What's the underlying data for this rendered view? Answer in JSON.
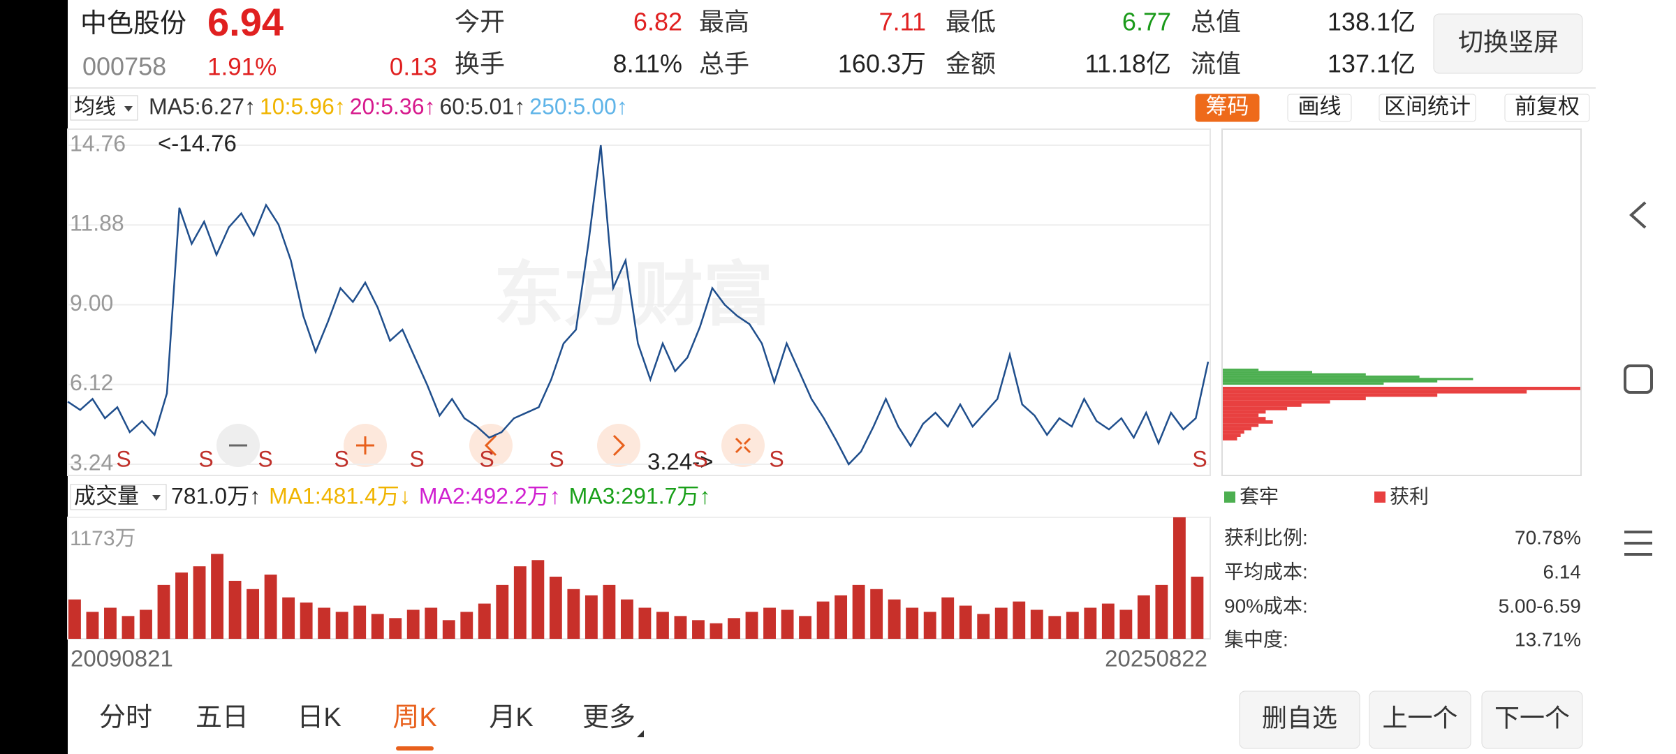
{
  "header": {
    "name": "中色股份",
    "price": "6.94",
    "code": "000758",
    "change_pct": "1.91%",
    "change": "0.13",
    "stats": [
      {
        "label": "今开",
        "value": "6.82",
        "color": "#e02020"
      },
      {
        "label": "最高",
        "value": "7.11",
        "color": "#e02020"
      },
      {
        "label": "最低",
        "value": "6.77",
        "color": "#1a9a1a"
      },
      {
        "label": "总值",
        "value": "138.1亿"
      },
      {
        "label": "换手",
        "value": "8.11%"
      },
      {
        "label": "总手",
        "value": "160.3万"
      },
      {
        "label": "金额",
        "value": "11.18亿"
      },
      {
        "label": "流值",
        "value": "137.1亿"
      }
    ],
    "button": "切换竖屏"
  },
  "ma_bar": {
    "selector": "均线",
    "items": [
      {
        "text": "MA5:6.27↑",
        "color": "#333333"
      },
      {
        "text": "10:5.96↑",
        "color": "#f0b400"
      },
      {
        "text": "20:5.36↑",
        "color": "#d6188c"
      },
      {
        "text": "60:5.01↑",
        "color": "#333333"
      },
      {
        "text": "250:5.00↑",
        "color": "#5fb4e8"
      }
    ]
  },
  "tools": [
    {
      "label": "筹码",
      "active": true
    },
    {
      "label": "画线"
    },
    {
      "label": "区间统计"
    },
    {
      "label": "前复权"
    }
  ],
  "price_chart": {
    "type": "line",
    "color": "#1f4e8c",
    "ylim": [
      3.24,
      14.76
    ],
    "yticks": [
      14.76,
      11.88,
      {
        "value": 9,
        "label": "9.00"
      },
      6.12,
      3.24
    ],
    "grid": true,
    "values": [
      5.5,
      5.2,
      5.6,
      4.9,
      5.3,
      4.4,
      4.8,
      4.3,
      5.8,
      12.5,
      11.2,
      12.0,
      10.8,
      11.8,
      12.3,
      11.5,
      12.6,
      11.9,
      10.6,
      8.6,
      7.3,
      8.4,
      9.6,
      9.1,
      9.8,
      8.9,
      7.7,
      8.1,
      7.1,
      6.1,
      5.0,
      5.6,
      4.9,
      4.6,
      4.2,
      4.4,
      4.9,
      5.1,
      5.3,
      6.3,
      7.6,
      8.1,
      11.2,
      14.76,
      9.6,
      10.6,
      7.6,
      6.3,
      7.6,
      6.6,
      7.1,
      8.2,
      9.6,
      9.0,
      8.6,
      8.3,
      7.6,
      6.2,
      7.6,
      6.6,
      5.6,
      4.9,
      4.1,
      3.24,
      3.7,
      4.6,
      5.6,
      4.6,
      3.9,
      4.7,
      5.1,
      4.6,
      5.4,
      4.6,
      5.1,
      5.6,
      7.2,
      5.4,
      5.0,
      4.3,
      4.9,
      4.6,
      5.6,
      4.8,
      4.5,
      4.9,
      4.2,
      5.1,
      4.0,
      5.1,
      4.5,
      4.9,
      6.94
    ],
    "max_label": "<-14.76",
    "min_label": "3.24->",
    "markers": [
      "S",
      "S",
      "S",
      "S",
      "S",
      "S",
      "S",
      "S",
      "S",
      "S"
    ],
    "watermark": "东方财富"
  },
  "volume_chart": {
    "type": "bar",
    "selector": "成交量",
    "color": "#c8302a",
    "items": [
      {
        "text": "781.0万↑",
        "color": "#222222"
      },
      {
        "text": "MA1:481.4万↓",
        "color": "#f0b400"
      },
      {
        "text": "MA2:492.2万↑",
        "color": "#d020d0"
      },
      {
        "text": "MA3:291.7万↑",
        "color": "#1aa01a"
      }
    ],
    "ylim": [
      0,
      1173
    ],
    "yticks": [
      {
        "value": 1173,
        "label": "1173万"
      }
    ],
    "values": [
      380,
      260,
      300,
      220,
      280,
      520,
      640,
      700,
      820,
      560,
      480,
      620,
      400,
      350,
      300,
      260,
      320,
      240,
      200,
      280,
      300,
      180,
      260,
      340,
      520,
      700,
      760,
      600,
      480,
      420,
      520,
      380,
      300,
      260,
      220,
      180,
      150,
      200,
      260,
      300,
      280,
      220,
      360,
      420,
      520,
      480,
      380,
      300,
      260,
      400,
      320,
      240,
      300,
      360,
      280,
      220,
      260,
      300,
      340,
      280,
      420,
      520,
      1173,
      600
    ],
    "start_date": "20090821",
    "end_date": "20250822"
  },
  "chips": {
    "legend": [
      {
        "label": "套牢",
        "color": "#4caf50"
      },
      {
        "label": "获利",
        "color": "#e84040"
      }
    ],
    "green": [
      10,
      25,
      40,
      55,
      70,
      60,
      45
    ],
    "red": [
      100,
      85,
      60,
      40,
      30,
      22,
      18,
      12,
      10,
      12,
      14,
      10,
      8,
      6,
      5,
      4
    ],
    "stats": [
      {
        "label": "获利比例:",
        "value": "70.78%"
      },
      {
        "label": "平均成本:",
        "value": "6.14"
      },
      {
        "label": "90%成本:",
        "value": "5.00-6.59"
      },
      {
        "label": "集中度:",
        "value": "13.71%"
      }
    ]
  },
  "tabs": [
    {
      "label": "分时"
    },
    {
      "label": "五日"
    },
    {
      "label": "日K"
    },
    {
      "label": "周K",
      "active": true
    },
    {
      "label": "月K"
    },
    {
      "label": "更多"
    }
  ],
  "actions": [
    "删自选",
    "上一个",
    "下一个"
  ]
}
